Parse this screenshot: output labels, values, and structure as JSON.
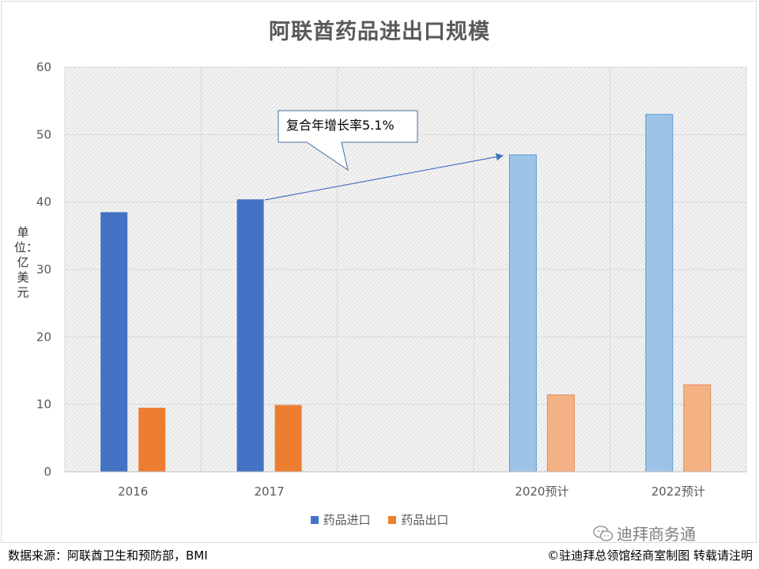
{
  "chart_data": {
    "type": "bar",
    "title": "阿联酋药品进出口规模",
    "ylabel": "单位：亿美元",
    "ylim": [
      0,
      60
    ],
    "yticks": [
      0,
      10,
      20,
      30,
      40,
      50,
      60
    ],
    "categories": [
      "2016",
      "2017",
      "",
      "2020预计",
      "2022预计"
    ],
    "series": [
      {
        "name": "药品进口",
        "values": [
          38.5,
          40.4,
          null,
          47.0,
          53.0
        ]
      },
      {
        "name": "药品出口",
        "values": [
          9.5,
          9.9,
          null,
          11.4,
          12.9
        ]
      }
    ],
    "colors": {
      "import_actual": "#4472c4",
      "export_actual": "#ed7d31",
      "import_forecast": "#9dc3e6",
      "export_forecast": "#f4b183"
    },
    "grid": true,
    "legend_position": "bottom",
    "annotation": {
      "text": "复合年增长率5.1%"
    }
  },
  "footer": {
    "source": "数据来源：阿联酋卫生和预防部，BMI",
    "copyright": "©驻迪拜总领馆经商室制图 转载请注明"
  },
  "watermark": {
    "text": "迪拜商务通",
    "icon": "wechat-icon"
  }
}
